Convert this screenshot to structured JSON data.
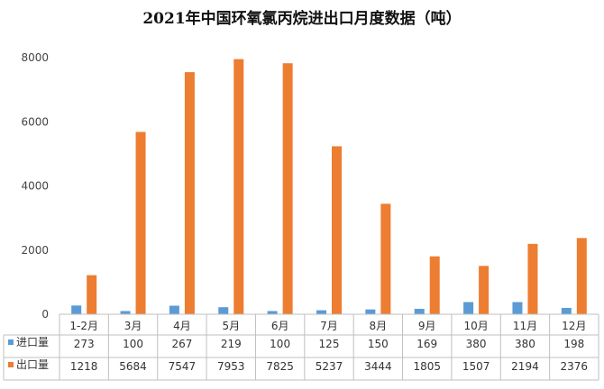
{
  "chart_data": {
    "type": "bar",
    "title": "2021年中国环氧氯丙烷进出口月度数据（吨）",
    "categories": [
      "1-2月",
      "3月",
      "4月",
      "5月",
      "6月",
      "7月",
      "8月",
      "9月",
      "10月",
      "11月",
      "12月"
    ],
    "series": [
      {
        "name": "进口量",
        "color": "#5b9bd5",
        "values": [
          273,
          100,
          267,
          219,
          100,
          125,
          150,
          169,
          380,
          380,
          198
        ]
      },
      {
        "name": "出口量",
        "color": "#ed7d31",
        "values": [
          1218,
          5684,
          7547,
          7953,
          7825,
          5237,
          3444,
          1805,
          1507,
          2194,
          2376
        ]
      }
    ],
    "ylim": [
      0,
      8000
    ],
    "yticks": [
      0,
      2000,
      4000,
      6000,
      8000
    ],
    "xlabel": "",
    "ylabel": "",
    "grid": false,
    "legend": "data-table"
  }
}
